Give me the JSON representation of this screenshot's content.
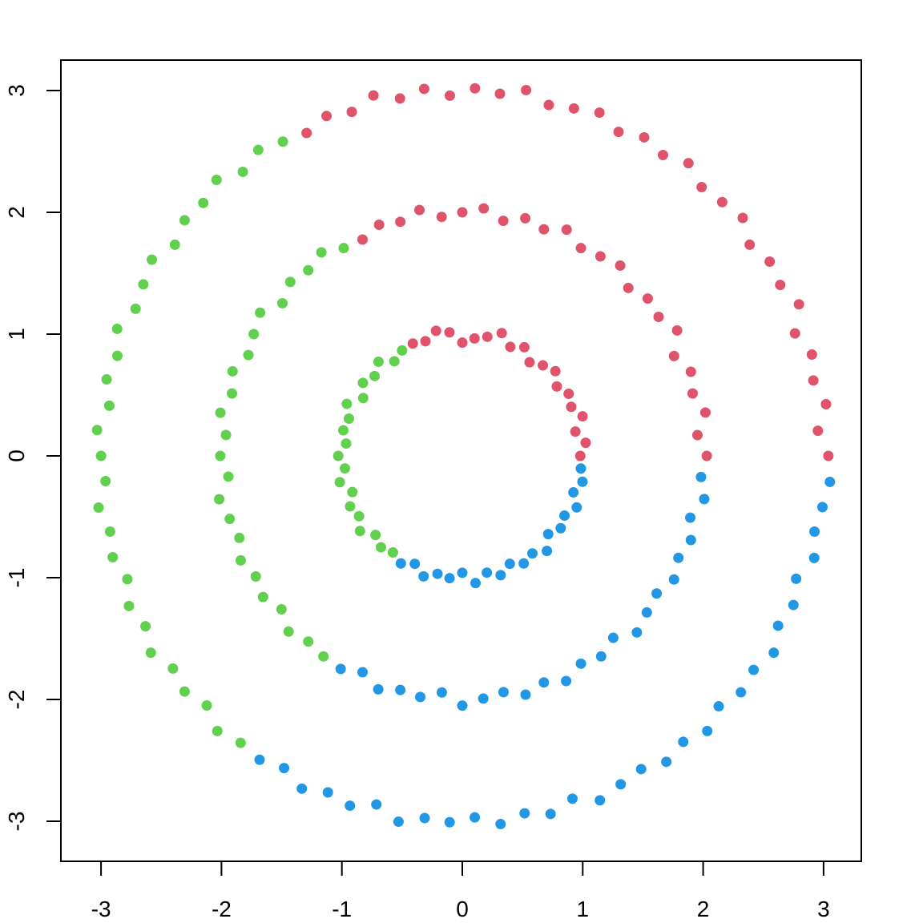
{
  "chart_data": {
    "type": "scatter",
    "title": "",
    "xlabel": "",
    "ylabel": "",
    "xlim": [
      -3.3,
      3.3
    ],
    "ylim": [
      -3.3,
      3.3
    ],
    "xticks": [
      "-3",
      "-2",
      "-1",
      "0",
      "1",
      "2",
      "3"
    ],
    "yticks": [
      "-3",
      "-2",
      "-1",
      "0",
      "1",
      "2",
      "3"
    ],
    "grid": false,
    "point_format": "[angle_degrees, radius]",
    "series": [
      {
        "name": "red",
        "color": "#DF536B",
        "points": [
          [
            0,
            0.98
          ],
          [
            6,
            1.03
          ],
          [
            12,
            0.96
          ],
          [
            18,
            1.05
          ],
          [
            24,
            0.99
          ],
          [
            30,
            1.02
          ],
          [
            36,
            0.97
          ],
          [
            42,
            1.04
          ],
          [
            48,
            1.0
          ],
          [
            54,
            0.95
          ],
          [
            60,
            1.03
          ],
          [
            66,
            0.98
          ],
          [
            72,
            1.06
          ],
          [
            78,
            1.0
          ],
          [
            84,
            0.97
          ],
          [
            90,
            0.93
          ],
          [
            96,
            1.02
          ],
          [
            102,
            1.05
          ],
          [
            108,
            0.99
          ],
          [
            114,
            1.01
          ],
          [
            0,
            2.03
          ],
          [
            5,
            1.96
          ],
          [
            10,
            2.05
          ],
          [
            15,
            1.98
          ],
          [
            20,
            2.02
          ],
          [
            25,
            1.94
          ],
          [
            30,
            2.06
          ],
          [
            35,
            1.99
          ],
          [
            40,
            2.01
          ],
          [
            45,
            1.95
          ],
          [
            50,
            2.04
          ],
          [
            55,
            2.0
          ],
          [
            60,
            1.97
          ],
          [
            65,
            2.05
          ],
          [
            70,
            1.98
          ],
          [
            75,
            2.02
          ],
          [
            80,
            1.96
          ],
          [
            85,
            2.04
          ],
          [
            90,
            2.0
          ],
          [
            95,
            1.97
          ],
          [
            100,
            2.05
          ],
          [
            105,
            1.99
          ],
          [
            110,
            2.02
          ],
          [
            115,
            1.96
          ],
          [
            0,
            3.04
          ],
          [
            4,
            2.96
          ],
          [
            8,
            3.05
          ],
          [
            12,
            2.98
          ],
          [
            16,
            3.02
          ],
          [
            20,
            2.94
          ],
          [
            24,
            3.06
          ],
          [
            28,
            2.99
          ],
          [
            32,
            3.01
          ],
          [
            36,
            2.95
          ],
          [
            40,
            3.04
          ],
          [
            44,
            3.0
          ],
          [
            48,
            2.97
          ],
          [
            52,
            3.05
          ],
          [
            56,
            2.98
          ],
          [
            60,
            3.02
          ],
          [
            64,
            2.96
          ],
          [
            68,
            3.04
          ],
          [
            72,
            3.0
          ],
          [
            76,
            2.97
          ],
          [
            80,
            3.05
          ],
          [
            84,
            2.99
          ],
          [
            88,
            3.02
          ],
          [
            92,
            2.96
          ],
          [
            96,
            3.03
          ],
          [
            100,
            2.98
          ],
          [
            104,
            3.05
          ],
          [
            108,
            2.97
          ],
          [
            112,
            3.01
          ],
          [
            116,
            2.95
          ]
        ]
      },
      {
        "name": "green",
        "color": "#61D04F",
        "points": [
          [
            120,
            1.0
          ],
          [
            126,
            0.96
          ],
          [
            132,
            1.04
          ],
          [
            138,
            0.98
          ],
          [
            144,
            1.02
          ],
          [
            150,
            0.95
          ],
          [
            156,
            1.05
          ],
          [
            162,
            0.99
          ],
          [
            168,
            1.01
          ],
          [
            174,
            0.97
          ],
          [
            180,
            1.03
          ],
          [
            186,
            0.98
          ],
          [
            192,
            1.04
          ],
          [
            198,
            0.96
          ],
          [
            204,
            1.02
          ],
          [
            210,
            0.99
          ],
          [
            216,
            1.05
          ],
          [
            222,
            0.97
          ],
          [
            228,
            1.01
          ],
          [
            234,
            0.98
          ],
          [
            120,
            1.97
          ],
          [
            125,
            2.04
          ],
          [
            130,
            1.99
          ],
          [
            135,
            2.02
          ],
          [
            140,
            1.95
          ],
          [
            145,
            2.05
          ],
          [
            150,
            2.0
          ],
          [
            155,
            1.96
          ],
          [
            160,
            2.03
          ],
          [
            165,
            1.98
          ],
          [
            170,
            2.04
          ],
          [
            175,
            1.97
          ],
          [
            180,
            2.01
          ],
          [
            185,
            1.95
          ],
          [
            190,
            2.05
          ],
          [
            195,
            2.0
          ],
          [
            200,
            1.97
          ],
          [
            205,
            2.03
          ],
          [
            210,
            1.98
          ],
          [
            215,
            2.02
          ],
          [
            220,
            1.96
          ],
          [
            225,
            2.04
          ],
          [
            230,
            1.99
          ],
          [
            235,
            2.01
          ],
          [
            120,
            2.98
          ],
          [
            124,
            3.03
          ],
          [
            128,
            2.96
          ],
          [
            132,
            3.05
          ],
          [
            136,
            2.99
          ],
          [
            140,
            3.01
          ],
          [
            144,
            2.95
          ],
          [
            148,
            3.04
          ],
          [
            152,
            3.0
          ],
          [
            156,
            2.97
          ],
          [
            160,
            3.05
          ],
          [
            164,
            2.98
          ],
          [
            168,
            3.02
          ],
          [
            172,
            2.96
          ],
          [
            176,
            3.04
          ],
          [
            180,
            3.0
          ],
          [
            184,
            2.97
          ],
          [
            188,
            3.05
          ],
          [
            192,
            2.99
          ],
          [
            196,
            3.02
          ],
          [
            200,
            2.96
          ],
          [
            204,
            3.03
          ],
          [
            208,
            2.98
          ],
          [
            212,
            3.05
          ],
          [
            216,
            2.97
          ],
          [
            220,
            3.01
          ],
          [
            224,
            2.95
          ],
          [
            228,
            3.04
          ],
          [
            232,
            2.99
          ]
        ]
      },
      {
        "name": "blue",
        "color": "#2297E6",
        "points": [
          [
            240,
            1.02
          ],
          [
            246,
            0.97
          ],
          [
            252,
            1.04
          ],
          [
            258,
            0.99
          ],
          [
            264,
            1.01
          ],
          [
            270,
            0.96
          ],
          [
            276,
            1.05
          ],
          [
            282,
            0.98
          ],
          [
            288,
            1.03
          ],
          [
            294,
            0.97
          ],
          [
            300,
            1.02
          ],
          [
            306,
            0.99
          ],
          [
            312,
            1.05
          ],
          [
            318,
            0.96
          ],
          [
            324,
            1.01
          ],
          [
            330,
            0.98
          ],
          [
            336,
            1.04
          ],
          [
            342,
            0.97
          ],
          [
            348,
            1.02
          ],
          [
            354,
            0.99
          ],
          [
            240,
            2.02
          ],
          [
            245,
            1.96
          ],
          [
            250,
            2.04
          ],
          [
            255,
            1.99
          ],
          [
            260,
            2.01
          ],
          [
            265,
            1.95
          ],
          [
            270,
            2.05
          ],
          [
            275,
            2.0
          ],
          [
            280,
            1.97
          ],
          [
            285,
            2.03
          ],
          [
            290,
            1.98
          ],
          [
            295,
            2.04
          ],
          [
            300,
            1.97
          ],
          [
            305,
            2.01
          ],
          [
            310,
            1.95
          ],
          [
            315,
            2.05
          ],
          [
            320,
            2.0
          ],
          [
            325,
            1.97
          ],
          [
            330,
            2.03
          ],
          [
            335,
            1.98
          ],
          [
            340,
            2.02
          ],
          [
            345,
            1.96
          ],
          [
            350,
            2.04
          ],
          [
            355,
            1.99
          ],
          [
            236,
            3.01
          ],
          [
            240,
            2.96
          ],
          [
            244,
            3.04
          ],
          [
            248,
            2.98
          ],
          [
            252,
            3.02
          ],
          [
            256,
            2.95
          ],
          [
            260,
            3.05
          ],
          [
            264,
            2.99
          ],
          [
            268,
            3.01
          ],
          [
            272,
            2.97
          ],
          [
            276,
            3.04
          ],
          [
            280,
            2.98
          ],
          [
            284,
            3.03
          ],
          [
            288,
            2.96
          ],
          [
            292,
            3.05
          ],
          [
            296,
            3.0
          ],
          [
            300,
            2.97
          ],
          [
            304,
            3.03
          ],
          [
            308,
            2.98
          ],
          [
            312,
            3.04
          ],
          [
            316,
            2.96
          ],
          [
            320,
            3.02
          ],
          [
            324,
            2.99
          ],
          [
            328,
            3.05
          ],
          [
            332,
            2.97
          ],
          [
            336,
            3.01
          ],
          [
            340,
            2.95
          ],
          [
            344,
            3.04
          ],
          [
            348,
            2.99
          ],
          [
            352,
            3.02
          ],
          [
            356,
            3.06
          ]
        ]
      }
    ]
  }
}
